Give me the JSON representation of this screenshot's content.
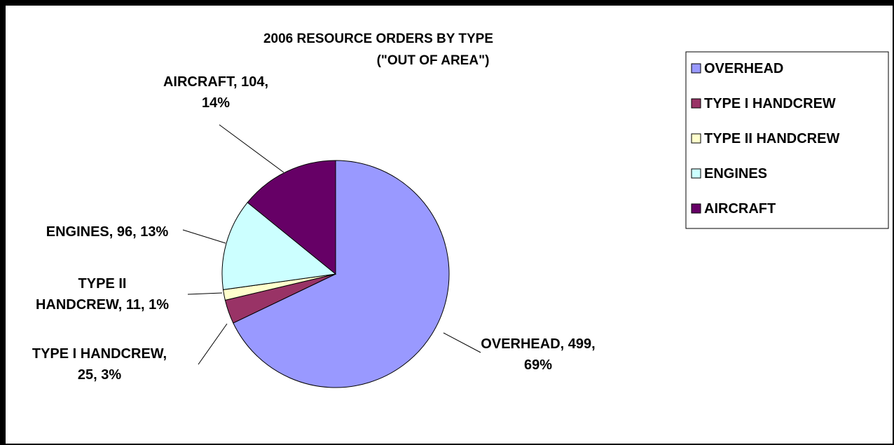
{
  "chart_data": {
    "type": "pie",
    "title": "2006 RESOURCE ORDERS BY TYPE",
    "subtitle": "(\"OUT OF AREA\")",
    "series": [
      {
        "name": "OVERHEAD",
        "value": 499,
        "percent": "69%",
        "color": "#9999FF"
      },
      {
        "name": "TYPE I HANDCREW",
        "value": 25,
        "percent": "3%",
        "color": "#993366"
      },
      {
        "name": "TYPE II HANDCREW",
        "value": 11,
        "percent": "1%",
        "color": "#FFFFCC"
      },
      {
        "name": "ENGINES",
        "value": 96,
        "percent": "13%",
        "color": "#CCFFFF"
      },
      {
        "name": "AIRCRAFT",
        "value": 104,
        "percent": "14%",
        "color": "#660066"
      }
    ],
    "data_labels": [
      {
        "lines": [
          "OVERHEAD, 499,",
          "69%"
        ]
      },
      {
        "lines": [
          "TYPE I HANDCREW,",
          "25, 3%"
        ]
      },
      {
        "lines": [
          "TYPE II",
          "HANDCREW, 11, 1%"
        ]
      },
      {
        "lines": [
          "ENGINES, 96, 13%"
        ]
      },
      {
        "lines": [
          "AIRCRAFT, 104,",
          "14%"
        ]
      }
    ],
    "legend_position": "right"
  }
}
